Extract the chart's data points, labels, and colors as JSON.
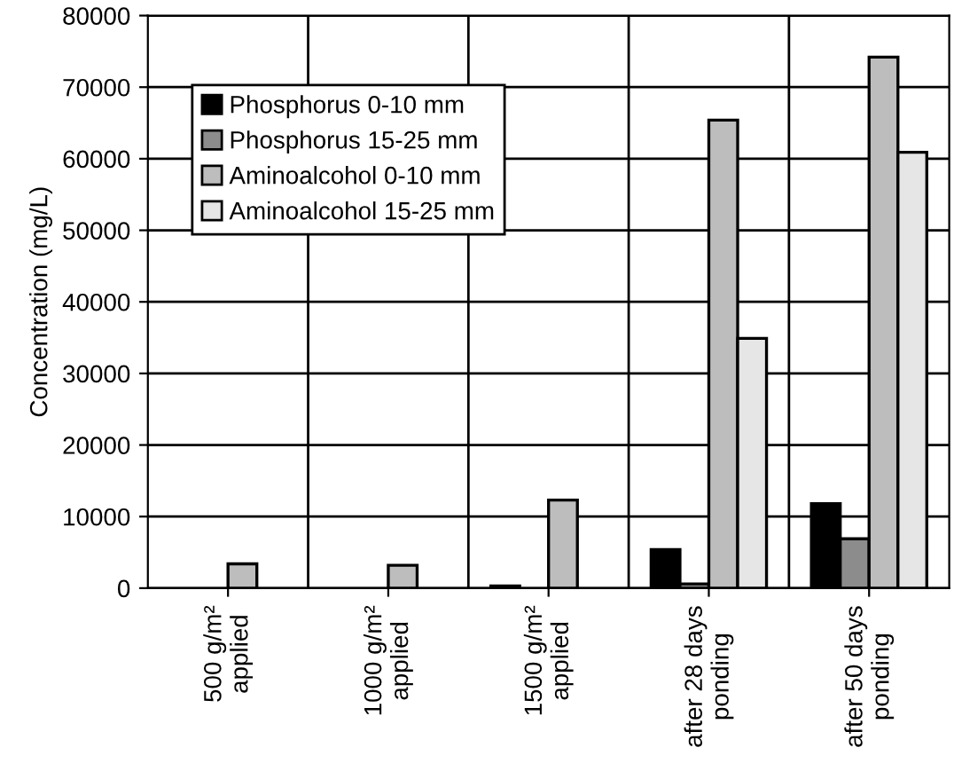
{
  "chart_data": {
    "type": "bar",
    "ylabel": "Concentration (mg/L)",
    "categories": [
      "500 g/m²\napplied",
      "1000 g/m²\napplied",
      "1500 g/m²\napplied",
      "after 28 days\nponding",
      "after 50 days\nponding"
    ],
    "series": [
      {
        "name": "Phosphorus 0-10 mm",
        "color": "#000000",
        "values": [
          null,
          null,
          300,
          5400,
          11800
        ]
      },
      {
        "name": "Phosphorus 15-25 mm",
        "color": "#8c8c8c",
        "values": [
          null,
          null,
          null,
          600,
          6900
        ]
      },
      {
        "name": "Aminoalcohol 0-10 mm",
        "color": "#bdbdbd",
        "values": [
          3400,
          3200,
          12300,
          65400,
          74200
        ]
      },
      {
        "name": "Aminoalcohol 15-25 mm",
        "color": "#e6e6e6",
        "values": [
          null,
          null,
          null,
          34900,
          60900
        ]
      }
    ],
    "ylim": [
      0,
      80000
    ],
    "yticks": [
      0,
      10000,
      20000,
      30000,
      40000,
      50000,
      60000,
      70000,
      80000
    ],
    "grid": true,
    "legend": "top left"
  }
}
